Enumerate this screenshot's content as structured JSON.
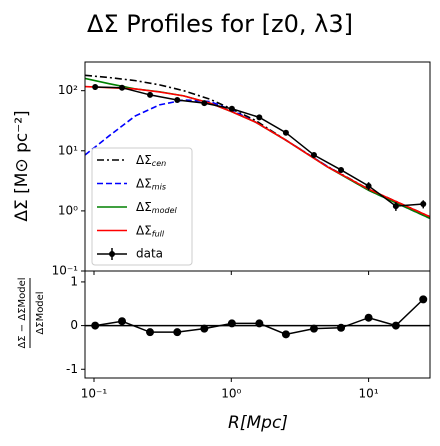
{
  "chart_data": [
    {
      "type": "line",
      "title": "ΔΣ Profiles for [z0, λ3]",
      "ylabel": "ΔΣ [M⊙ pc⁻²]",
      "yscale": "log",
      "xscale": "log",
      "xlim": [
        0.086,
        28
      ],
      "ylim": [
        0.1,
        300
      ],
      "yticks": [
        {
          "value": 0.1,
          "label": "10⁻¹"
        },
        {
          "value": 1,
          "label": "10⁰"
        },
        {
          "value": 10,
          "label": "10¹"
        },
        {
          "value": 100,
          "label": "10²"
        }
      ],
      "legend": "lower left",
      "model_x": [
        0.086,
        0.13,
        0.2,
        0.3,
        0.45,
        0.7,
        1,
        1.5,
        2.5,
        5,
        10,
        28
      ],
      "series": [
        {
          "name": "ΔΣ",
          "subscript": "cen",
          "color": "#000000",
          "dash": "dashdot",
          "values": [
            180,
            165,
            147,
            125,
            100,
            72,
            50,
            32,
            15,
            5.5,
            2.3,
            0.8
          ]
        },
        {
          "name": "ΔΣ",
          "subscript": "mis",
          "color": "#0000ff",
          "dash": "dashed",
          "values": [
            8.5,
            18,
            38,
            58,
            70,
            66,
            48,
            30,
            15,
            5.5,
            2.2,
            0.75
          ]
        },
        {
          "name": "ΔΣ",
          "subscript": "model",
          "color": "#008000",
          "dash": "solid",
          "values": [
            160,
            130,
            107,
            96,
            82,
            62,
            45,
            30,
            15,
            5.4,
            2.2,
            0.75
          ]
        },
        {
          "name": "ΔΣ",
          "subscript": "full",
          "color": "#ff0000",
          "dash": "solid",
          "values": [
            117,
            112,
            107,
            95,
            82,
            62,
            45,
            30,
            15,
            5.4,
            2.3,
            0.8
          ]
        }
      ],
      "data": {
        "name": "data",
        "color": "#000000",
        "x": [
          0.102,
          0.16,
          0.256,
          0.404,
          0.636,
          1.01,
          1.6,
          2.5,
          4.0,
          6.3,
          10,
          15.8,
          25
        ],
        "values": [
          115,
          112,
          85,
          70,
          62,
          50,
          36,
          20,
          8.5,
          4.8,
          2.6,
          1.2,
          1.3
        ],
        "errors": [
          12,
          8,
          6,
          5,
          4,
          3,
          2,
          1.2,
          0.8,
          0.5,
          0.4,
          0.2,
          0.2
        ]
      }
    },
    {
      "type": "residual",
      "xlabel": "R[Mpc]",
      "ylabel_numerator": "ΔΣ − ΔΣModel",
      "ylabel_denominator": "ΔΣModel",
      "xscale": "log",
      "xlim": [
        0.086,
        28
      ],
      "ylim": [
        -1.2,
        1.25
      ],
      "yticks": [
        -1,
        0,
        1
      ],
      "xticks": [
        {
          "value": 0.1,
          "label": "10⁻¹"
        },
        {
          "value": 1,
          "label": "10⁰"
        },
        {
          "value": 10,
          "label": "10¹"
        }
      ],
      "hline": 0,
      "color": "#000000",
      "x": [
        0.102,
        0.16,
        0.256,
        0.404,
        0.636,
        1.01,
        1.6,
        2.5,
        4.0,
        6.3,
        10,
        15.8,
        25
      ],
      "values": [
        0,
        0.1,
        -0.15,
        -0.15,
        -0.07,
        0.05,
        0.05,
        -0.2,
        -0.07,
        -0.05,
        0.18,
        0,
        0.6
      ]
    }
  ]
}
